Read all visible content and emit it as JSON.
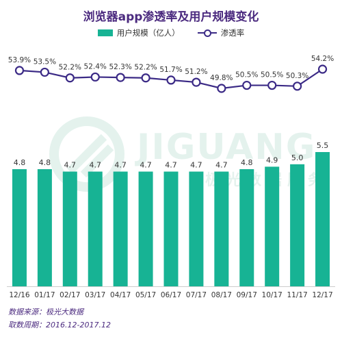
{
  "chart_data": {
    "type": "bar",
    "title": "浏览器app渗透率及用户规模变化",
    "categories": [
      "12/16",
      "01/17",
      "02/17",
      "03/17",
      "04/17",
      "05/17",
      "06/17",
      "07/17",
      "08/17",
      "09/17",
      "10/17",
      "11/17",
      "12/17"
    ],
    "series": [
      {
        "name": "用户规模（亿人）",
        "type": "bar",
        "color": "#17b394",
        "values": [
          4.8,
          4.8,
          4.7,
          4.7,
          4.7,
          4.7,
          4.7,
          4.7,
          4.7,
          4.8,
          4.9,
          5.0,
          5.5
        ],
        "labels": [
          "4.8",
          "4.8",
          "4.7",
          "4.7",
          "4.7",
          "4.7",
          "4.7",
          "4.7",
          "4.7",
          "4.8",
          "4.9",
          "5.0",
          "5.5"
        ]
      },
      {
        "name": "渗透率",
        "type": "line",
        "color": "#3b2a86",
        "values": [
          53.9,
          53.5,
          52.2,
          52.4,
          52.3,
          52.2,
          51.7,
          51.2,
          49.8,
          50.5,
          50.5,
          50.3,
          54.2
        ],
        "labels": [
          "53.9%",
          "53.5%",
          "52.2%",
          "52.4%",
          "52.3%",
          "52.2%",
          "51.7%",
          "51.2%",
          "49.8%",
          "50.5%",
          "50.5%",
          "50.3%",
          "54.2%"
        ]
      }
    ],
    "legend_position": "top",
    "grid": false
  },
  "watermark": {
    "text": "JIGUANG",
    "subtext": "极光数据服务"
  },
  "footer": {
    "source": "数据来源：极光大数据",
    "period": "取数周期：2016.12-2017.12"
  }
}
